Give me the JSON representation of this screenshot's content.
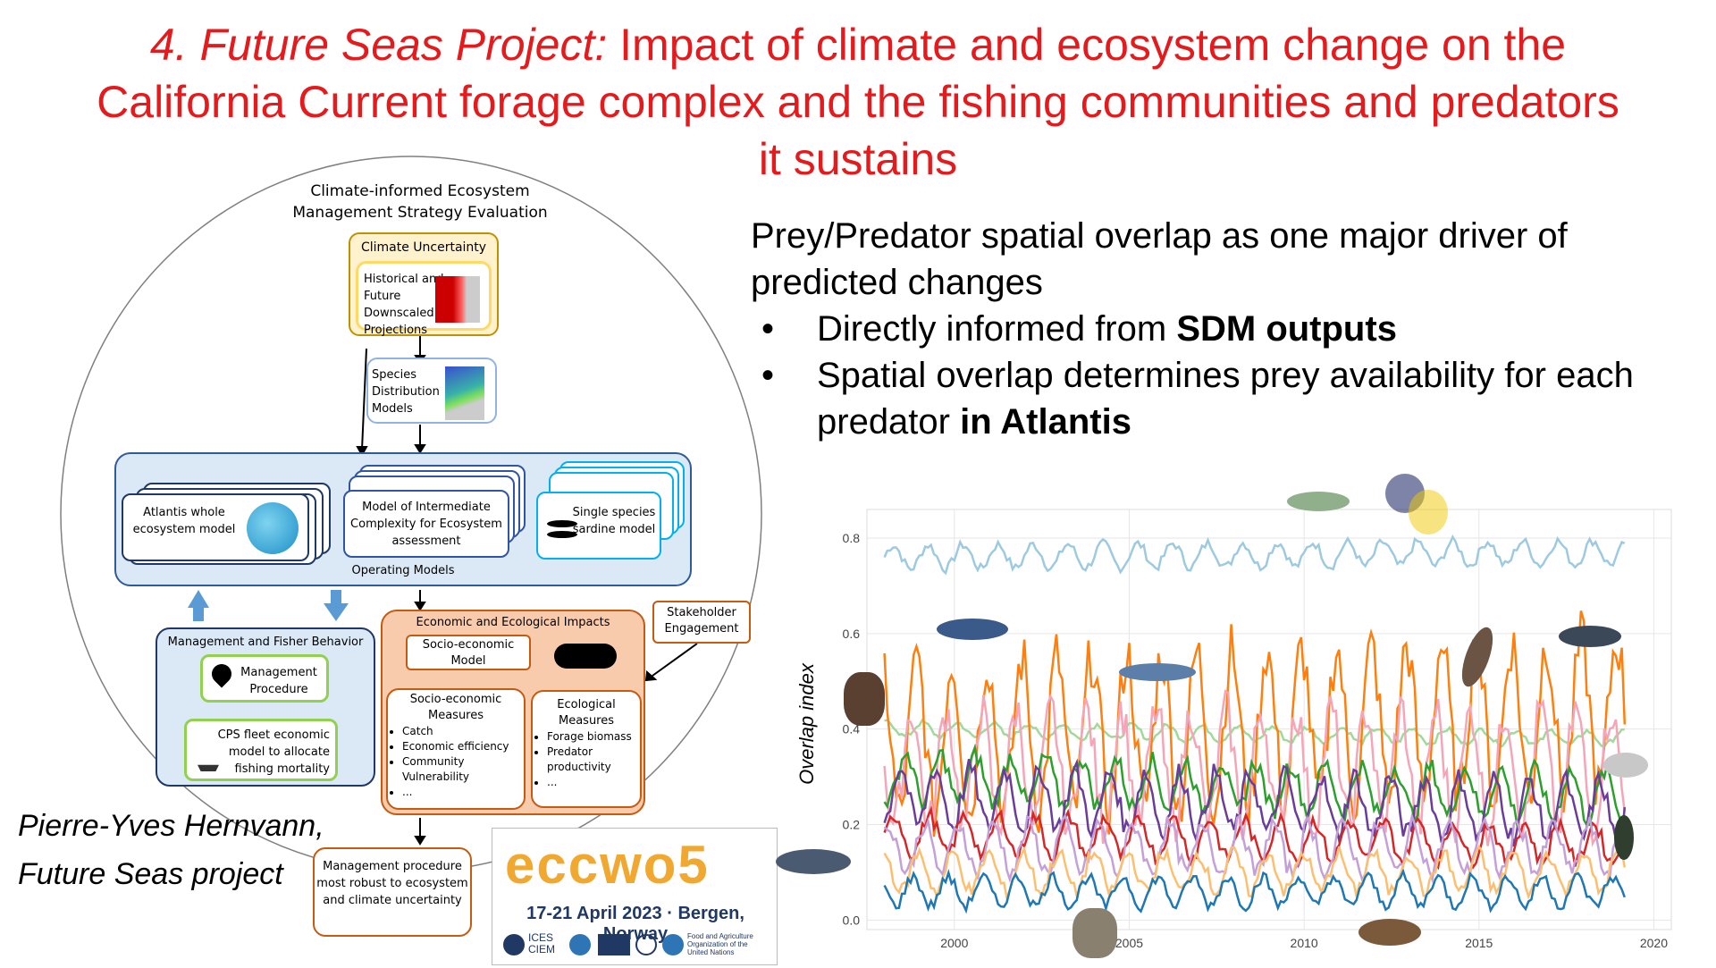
{
  "title": {
    "prefix": "4. Future Seas Project:",
    "rest": " Impact of climate and ecosystem change on the California Current forage complex and the fishing communities and predators it sustains"
  },
  "right_text": {
    "intro": "Prey/Predator spatial overlap as one major driver of predicted changes",
    "b1_pre": "Directly informed from ",
    "b1_bold": "SDM outputs",
    "b2_pre": "Spatial overlap determines prey availability for each predator ",
    "b2_bold": "in Atlantis"
  },
  "diagram": {
    "circle_title": "Climate-informed Ecosystem Management Strategy Evaluation",
    "climate_uncertainty": "Climate Uncertainty",
    "projections": "Historical and Future Downscaled Projections",
    "sdm": "Species Distribution Models",
    "atlantis": "Atlantis whole ecosystem model",
    "mice": "Model of Intermediate Complexity for Ecosystem assessment",
    "single": "Single species sardine model",
    "operating_models": "Operating Models",
    "mgmt_fisher": "Management and Fisher Behavior",
    "mgmt_proc": "Management Procedure",
    "cps": "CPS fleet economic model to allocate fishing mortality",
    "econ_impacts": "Economic and Ecological Impacts",
    "socio_model": "Socio-economic Model",
    "socio_measures": "Socio-economic Measures",
    "socio_items": [
      "Catch",
      "Economic efficiency",
      "Community Vulnerability",
      "..."
    ],
    "eco_measures": "Ecological Measures",
    "eco_items": [
      "Forage biomass",
      "Predator productivity",
      "..."
    ],
    "stakeholder": "Stakeholder Engagement",
    "robust": "Management procedure most robust to ecosystem and climate uncertainty"
  },
  "author": {
    "line1": "Pierre-Yves Hernvann,",
    "line2": "Future Seas project"
  },
  "logo": {
    "name": "eccwo5",
    "date": "17-21 April 2023 · Bergen, Norway",
    "ices1": "ICES",
    "ices2": "CIEM",
    "fao": "Food and Agriculture Organization of the United Nations"
  },
  "colors": {
    "title_red": "#e41a1c",
    "orange": "#ed7d31",
    "blue_box": "#dbe9f6",
    "navy": "#1f3864",
    "green": "#70ad47",
    "yellow": "#ffd966"
  },
  "chart_data": {
    "type": "line",
    "ylabel": "Overlap index",
    "xlabel": "",
    "xlim": [
      1997.5,
      2020.5
    ],
    "ylim": [
      -0.02,
      0.86
    ],
    "x_ticks": [
      2000,
      2005,
      2010,
      2015,
      2020
    ],
    "y_ticks": [
      "0.0",
      "0.2",
      "0.4",
      "0.6",
      "0.8"
    ],
    "x_start": 1998,
    "x_end": 2019.2,
    "steps_per_year": 12,
    "series": [
      {
        "color": "#9ecae1",
        "base": 0.76,
        "amp": 0.025,
        "trend": 0.01
      },
      {
        "color": "#a1d99b",
        "base": 0.4,
        "amp": 0.015,
        "trend": -0.02
      },
      {
        "color": "#ff7f0e",
        "base": 0.38,
        "amp": 0.16,
        "trend": 0.05
      },
      {
        "color": "#f4a6b8",
        "base": 0.32,
        "amp": 0.12,
        "trend": 0.0
      },
      {
        "color": "#2ca02c",
        "base": 0.3,
        "amp": 0.05,
        "trend": -0.04
      },
      {
        "color": "#6a3d9a",
        "base": 0.26,
        "amp": 0.06,
        "trend": -0.03
      },
      {
        "color": "#d62728",
        "base": 0.18,
        "amp": 0.04,
        "trend": -0.02
      },
      {
        "color": "#c5a0d8",
        "base": 0.15,
        "amp": 0.05,
        "trend": 0.0
      },
      {
        "color": "#fdbf6f",
        "base": 0.1,
        "amp": 0.04,
        "trend": 0.0
      },
      {
        "color": "#1f77b4",
        "base": 0.06,
        "amp": 0.03,
        "trend": 0.0
      }
    ]
  }
}
